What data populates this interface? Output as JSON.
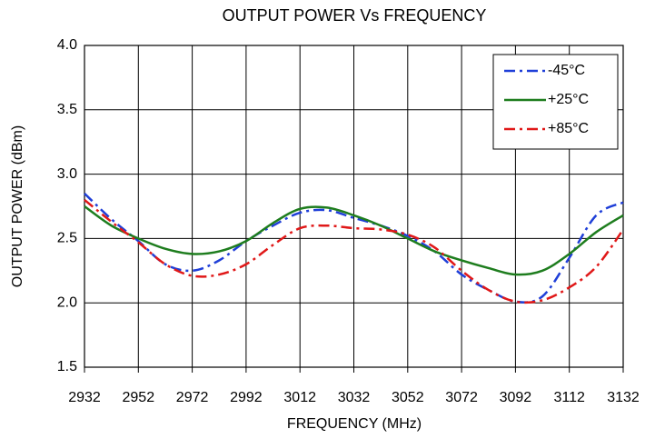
{
  "chart_data": {
    "type": "line",
    "title": "OUTPUT POWER Vs FREQUENCY",
    "xlabel": "FREQUENCY (MHz)",
    "ylabel": "OUTPUT POWER (dBm)",
    "x": [
      2932,
      2942,
      2952,
      2962,
      2972,
      2982,
      2992,
      3002,
      3012,
      3022,
      3032,
      3042,
      3052,
      3062,
      3072,
      3082,
      3092,
      3102,
      3112,
      3122,
      3132
    ],
    "series": [
      {
        "name": "-45°C",
        "color": "#1f3fd8",
        "dash": "dashdot",
        "values": [
          2.85,
          2.65,
          2.48,
          2.3,
          2.25,
          2.33,
          2.48,
          2.6,
          2.7,
          2.72,
          2.66,
          2.6,
          2.52,
          2.4,
          2.22,
          2.1,
          2.01,
          2.05,
          2.35,
          2.68,
          2.78
        ]
      },
      {
        "name": "+25°C",
        "color": "#1e7d1e",
        "dash": "solid",
        "values": [
          2.75,
          2.6,
          2.5,
          2.42,
          2.38,
          2.4,
          2.48,
          2.62,
          2.73,
          2.74,
          2.68,
          2.6,
          2.5,
          2.4,
          2.33,
          2.27,
          2.22,
          2.25,
          2.38,
          2.55,
          2.68
        ]
      },
      {
        "name": "+85°C",
        "color": "#e01818",
        "dash": "dashdot",
        "values": [
          2.8,
          2.63,
          2.47,
          2.3,
          2.21,
          2.22,
          2.3,
          2.45,
          2.58,
          2.6,
          2.58,
          2.57,
          2.53,
          2.43,
          2.25,
          2.1,
          2.01,
          2.02,
          2.12,
          2.28,
          2.57
        ]
      }
    ],
    "xlim": [
      2932,
      3132
    ],
    "xticks": [
      2932,
      2952,
      2972,
      2992,
      3012,
      3032,
      3052,
      3072,
      3092,
      3112,
      3132
    ],
    "ylim": [
      1.5,
      4.0
    ],
    "yticks": [
      1.5,
      {
        "value": 2,
        "label": "2.0"
      },
      2.5,
      {
        "value": 3,
        "label": "3.0"
      },
      3.5,
      {
        "value": 4,
        "label": "4.0"
      }
    ],
    "grid": true,
    "legend": "upper right"
  }
}
